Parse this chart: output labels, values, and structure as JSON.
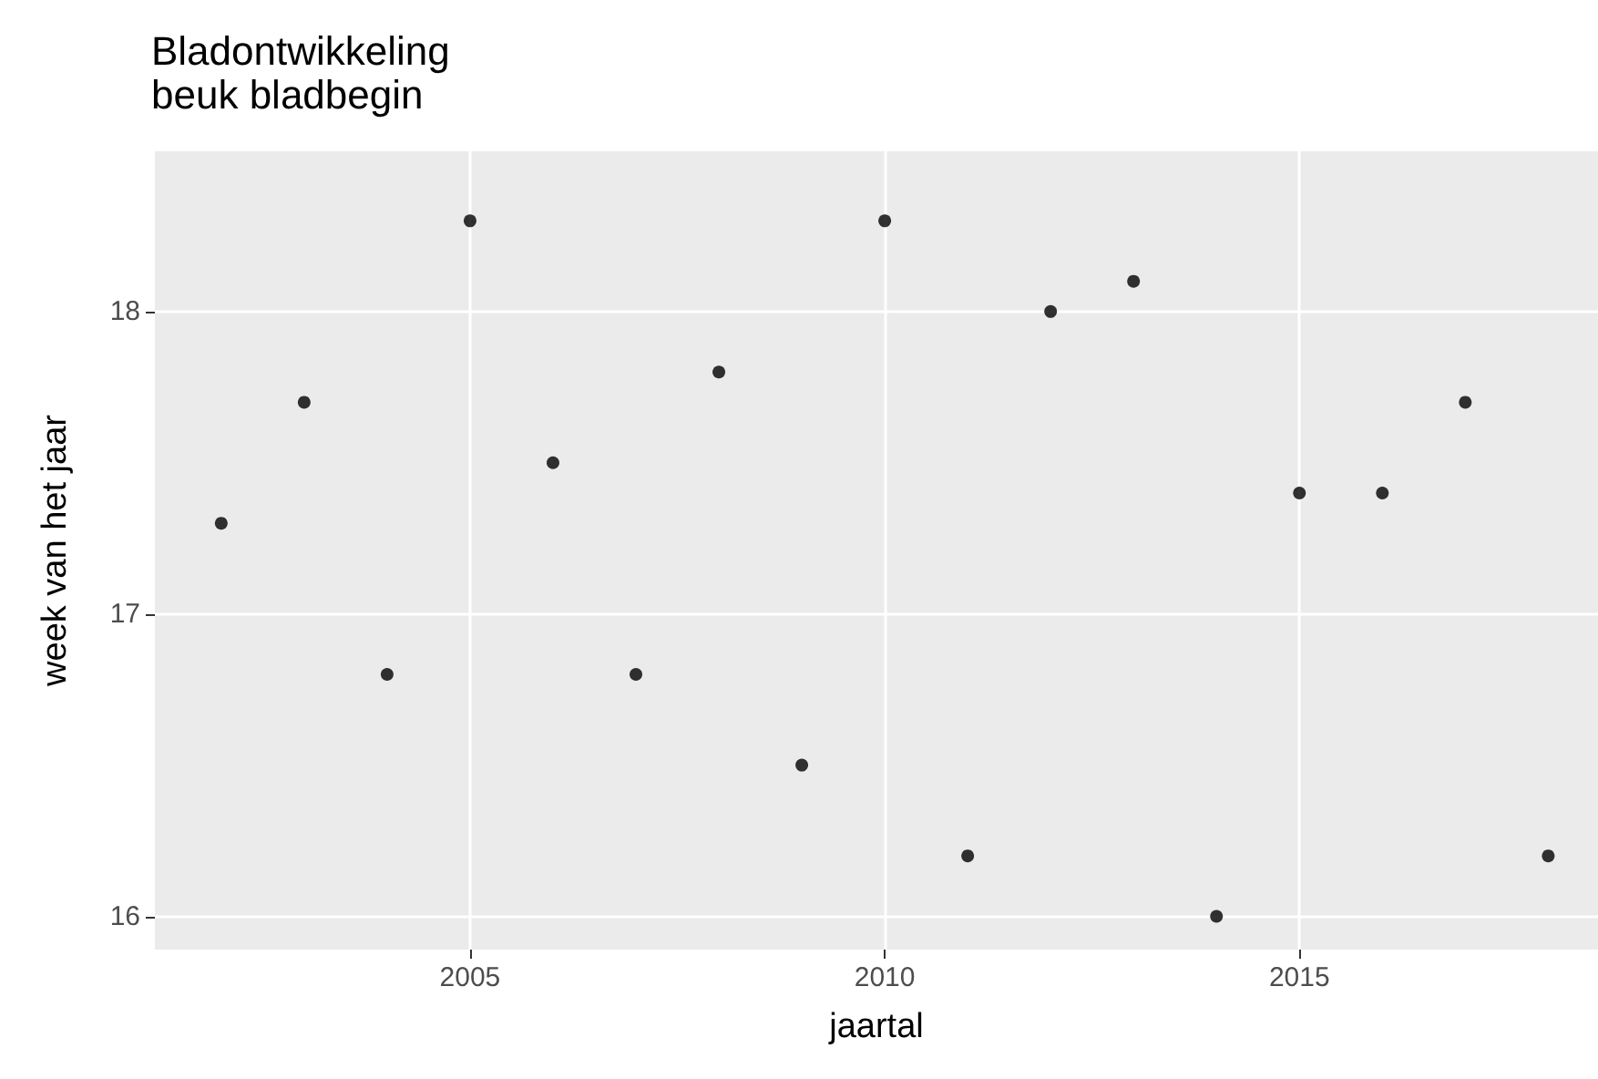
{
  "chart_data": {
    "type": "scatter",
    "title": "Bladontwikkeling",
    "subtitle": "beuk bladbegin",
    "xlabel": "jaartal",
    "ylabel": "week van het jaar",
    "x": [
      2002,
      2003,
      2004,
      2005,
      2006,
      2007,
      2008,
      2009,
      2010,
      2011,
      2012,
      2013,
      2014,
      2015,
      2016,
      2017,
      2018
    ],
    "values": [
      17.3,
      17.7,
      16.8,
      18.3,
      17.5,
      16.8,
      17.8,
      16.5,
      18.3,
      16.2,
      18.0,
      18.1,
      16.0,
      17.4,
      17.4,
      17.7,
      16.2
    ],
    "color": "#000000",
    "marker": "circle",
    "xlim": [
      2001.2,
      2018.6
    ],
    "xticks": [
      2005,
      2010,
      2015
    ],
    "ylim": [
      15.89,
      18.53
    ],
    "yticks": [
      16,
      17,
      18
    ],
    "grid": true
  }
}
